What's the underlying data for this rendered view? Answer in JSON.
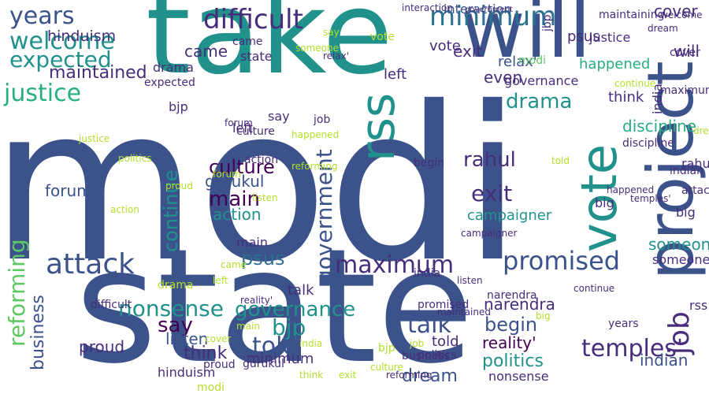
{
  "palette": {
    "navy": "#3b528b",
    "teal": "#21918c",
    "green": "#5ec962",
    "purple": "#472d7b",
    "lime": "#b5de2b",
    "blue": "#2c728e",
    "dark": "#440154",
    "mint": "#28ae80"
  },
  "words": [
    {
      "text": "modi",
      "color": "#3b528b"
    },
    {
      "text": "state",
      "color": "#3b528b"
    },
    {
      "text": "take",
      "color": "#21918c"
    },
    {
      "text": "will",
      "color": "#3b528b"
    },
    {
      "text": "project",
      "color": "#3b528b"
    },
    {
      "text": "vote",
      "color": "#21918c"
    },
    {
      "text": "rss",
      "color": "#21918c"
    },
    {
      "text": "job",
      "color": "#472d7b"
    },
    {
      "text": "difficult",
      "color": "#472d7b"
    },
    {
      "text": "minimum",
      "color": "#2c728e"
    },
    {
      "text": "years",
      "color": "#3b528b"
    },
    {
      "text": "welcome",
      "color": "#21918c"
    },
    {
      "text": "expected",
      "color": "#21918c"
    },
    {
      "text": "justice",
      "color": "#28ae80"
    },
    {
      "text": "maintained",
      "color": "#472d7b"
    },
    {
      "text": "hinduism",
      "color": "#472d7b"
    },
    {
      "text": "attack",
      "color": "#3b528b"
    },
    {
      "text": "promised",
      "color": "#3b528b"
    },
    {
      "text": "psus",
      "color": "#2c728e"
    },
    {
      "text": "maximum",
      "color": "#472d7b"
    },
    {
      "text": "governance",
      "color": "#21918c"
    },
    {
      "text": "nonsense",
      "color": "#21918c"
    },
    {
      "text": "say",
      "color": "#440154"
    },
    {
      "text": "bjp",
      "color": "#21918c"
    },
    {
      "text": "talk",
      "color": "#3b528b"
    },
    {
      "text": "told",
      "color": "#3b528b"
    },
    {
      "text": "temples'",
      "color": "#472d7b"
    },
    {
      "text": "reforming",
      "color": "#5ec962"
    },
    {
      "text": "government",
      "color": "#3b528b"
    },
    {
      "text": "drama",
      "color": "#21918c"
    },
    {
      "text": "exit",
      "color": "#472d7b"
    },
    {
      "text": "rahul",
      "color": "#472d7b"
    },
    {
      "text": "main",
      "color": "#440154"
    },
    {
      "text": "continue",
      "color": "#21918c"
    },
    {
      "text": "culture",
      "color": "#440154"
    },
    {
      "text": "business",
      "color": "#3b528b"
    },
    {
      "text": "begin",
      "color": "#3b528b"
    },
    {
      "text": "interaction",
      "color": "#3b528b"
    },
    {
      "text": "relax'",
      "color": "#3b528b"
    },
    {
      "text": "happened",
      "color": "#28ae80"
    },
    {
      "text": "indian",
      "color": "#3b528b"
    },
    {
      "text": "think",
      "color": "#472d7b"
    },
    {
      "text": "discipline",
      "color": "#28ae80"
    },
    {
      "text": "dream",
      "color": "#3b528b"
    },
    {
      "text": "politics",
      "color": "#21918c"
    },
    {
      "text": "listen",
      "color": "#3b528b"
    },
    {
      "text": "reality'",
      "color": "#440154"
    },
    {
      "text": "campaigner",
      "color": "#21918c"
    },
    {
      "text": "someone",
      "color": "#21918c"
    },
    {
      "text": "cover",
      "color": "#472d7b"
    },
    {
      "text": "left",
      "color": "#472d7b"
    },
    {
      "text": "proud",
      "color": "#472d7b"
    },
    {
      "text": "narendra",
      "color": "#472d7b"
    },
    {
      "text": "gurukul",
      "color": "#3b528b"
    },
    {
      "text": "action",
      "color": "#21918c"
    },
    {
      "text": "forum",
      "color": "#3b528b"
    },
    {
      "text": "came",
      "color": "#472d7b"
    },
    {
      "text": "india",
      "color": "#472d7b"
    },
    {
      "text": "even",
      "color": "#472d7b"
    },
    {
      "text": "maintaining",
      "color": "#472d7b"
    },
    {
      "text": "big",
      "color": "#472d7b"
    },
    {
      "text": "jbp",
      "color": "#472d7b"
    },
    {
      "text": "psus",
      "color": "#472d7b"
    },
    {
      "text": "expected",
      "color": "#472d7b"
    },
    {
      "text": "modi",
      "color": "#5ec962"
    },
    {
      "text": "will",
      "color": "#472d7b"
    },
    {
      "text": "exit",
      "color": "#472d7b"
    },
    {
      "text": "vote",
      "color": "#472d7b"
    },
    {
      "text": "state",
      "color": "#472d7b"
    },
    {
      "text": "came",
      "color": "#472d7b"
    },
    {
      "text": "bjp",
      "color": "#472d7b"
    },
    {
      "text": "forum",
      "color": "#472d7b"
    },
    {
      "text": "big",
      "color": "#472d7b"
    },
    {
      "text": "attack",
      "color": "#472d7b"
    },
    {
      "text": "rahul",
      "color": "#472d7b"
    },
    {
      "text": "told",
      "color": "#472d7b"
    },
    {
      "text": "drama",
      "color": "#472d7b"
    },
    {
      "text": "think",
      "color": "#472d7b"
    },
    {
      "text": "justice",
      "color": "#472d7b"
    },
    {
      "text": "indian",
      "color": "#472d7b"
    },
    {
      "text": "dream",
      "color": "#472d7b"
    },
    {
      "text": "cover",
      "color": "#472d7b"
    },
    {
      "text": "welcome",
      "color": "#472d7b"
    },
    {
      "text": "someone",
      "color": "#472d7b"
    },
    {
      "text": "maximum",
      "color": "#472d7b"
    },
    {
      "text": "continue",
      "color": "#472d7b"
    },
    {
      "text": "listen",
      "color": "#472d7b"
    },
    {
      "text": "reforming",
      "color": "#472d7b"
    },
    {
      "text": "temples'",
      "color": "#472d7b"
    },
    {
      "text": "minimum",
      "color": "#472d7b"
    },
    {
      "text": "politics",
      "color": "#472d7b"
    },
    {
      "text": "promised",
      "color": "#472d7b"
    },
    {
      "text": "maintained",
      "color": "#472d7b"
    },
    {
      "text": "nonsense",
      "color": "#472d7b"
    },
    {
      "text": "narendra",
      "color": "#472d7b"
    },
    {
      "text": "years",
      "color": "#472d7b"
    },
    {
      "text": "business",
      "color": "#472d7b"
    },
    {
      "text": "interaction",
      "color": "#472d7b"
    },
    {
      "text": "government",
      "color": "#472d7b"
    },
    {
      "text": "hinduism",
      "color": "#472d7b"
    },
    {
      "text": "campaigner",
      "color": "#472d7b"
    },
    {
      "text": "gurukul",
      "color": "#472d7b"
    },
    {
      "text": "discipline",
      "color": "#472d7b"
    },
    {
      "text": "happened",
      "color": "#472d7b"
    },
    {
      "text": "proud",
      "color": "#472d7b"
    },
    {
      "text": "relax'",
      "color": "#472d7b"
    },
    {
      "text": "reality'",
      "color": "#472d7b"
    },
    {
      "text": "culture",
      "color": "#472d7b"
    },
    {
      "text": "governance",
      "color": "#472d7b"
    },
    {
      "text": "difficult",
      "color": "#472d7b"
    },
    {
      "text": "action",
      "color": "#472d7b"
    },
    {
      "text": "main",
      "color": "#472d7b"
    },
    {
      "text": "talk",
      "color": "#472d7b"
    },
    {
      "text": "left",
      "color": "#472d7b"
    },
    {
      "text": "say",
      "color": "#472d7b"
    },
    {
      "text": "job",
      "color": "#472d7b"
    },
    {
      "text": "rss",
      "color": "#472d7b"
    },
    {
      "text": "india",
      "color": "#472d7b"
    },
    {
      "text": "begin",
      "color": "#472d7b"
    },
    {
      "text": "exit",
      "color": "#b5de2b"
    },
    {
      "text": "modi",
      "color": "#b5de2b"
    },
    {
      "text": "drama",
      "color": "#b5de2b"
    },
    {
      "text": "bjp",
      "color": "#b5de2b"
    },
    {
      "text": "think",
      "color": "#b5de2b"
    },
    {
      "text": "vote",
      "color": "#b5de2b"
    },
    {
      "text": "job",
      "color": "#b5de2b"
    },
    {
      "text": "main",
      "color": "#b5de2b"
    },
    {
      "text": "left",
      "color": "#b5de2b"
    },
    {
      "text": "justice",
      "color": "#b5de2b"
    },
    {
      "text": "culture",
      "color": "#b5de2b"
    },
    {
      "text": "big",
      "color": "#b5de2b"
    },
    {
      "text": "continue",
      "color": "#b5de2b"
    },
    {
      "text": "action",
      "color": "#b5de2b"
    },
    {
      "text": "reforming",
      "color": "#b5de2b"
    },
    {
      "text": "india",
      "color": "#b5de2b"
    },
    {
      "text": "cover",
      "color": "#b5de2b"
    },
    {
      "text": "listen",
      "color": "#b5de2b"
    },
    {
      "text": "politics",
      "color": "#b5de2b"
    },
    {
      "text": "someone",
      "color": "#b5de2b"
    },
    {
      "text": "happened",
      "color": "#b5de2b"
    },
    {
      "text": "forum",
      "color": "#b5de2b"
    },
    {
      "text": "say",
      "color": "#b5de2b"
    },
    {
      "text": "came",
      "color": "#b5de2b"
    },
    {
      "text": "told",
      "color": "#b5de2b"
    },
    {
      "text": "proud",
      "color": "#b5de2b"
    },
    {
      "text": "dream",
      "color": "#b5de2b"
    }
  ]
}
